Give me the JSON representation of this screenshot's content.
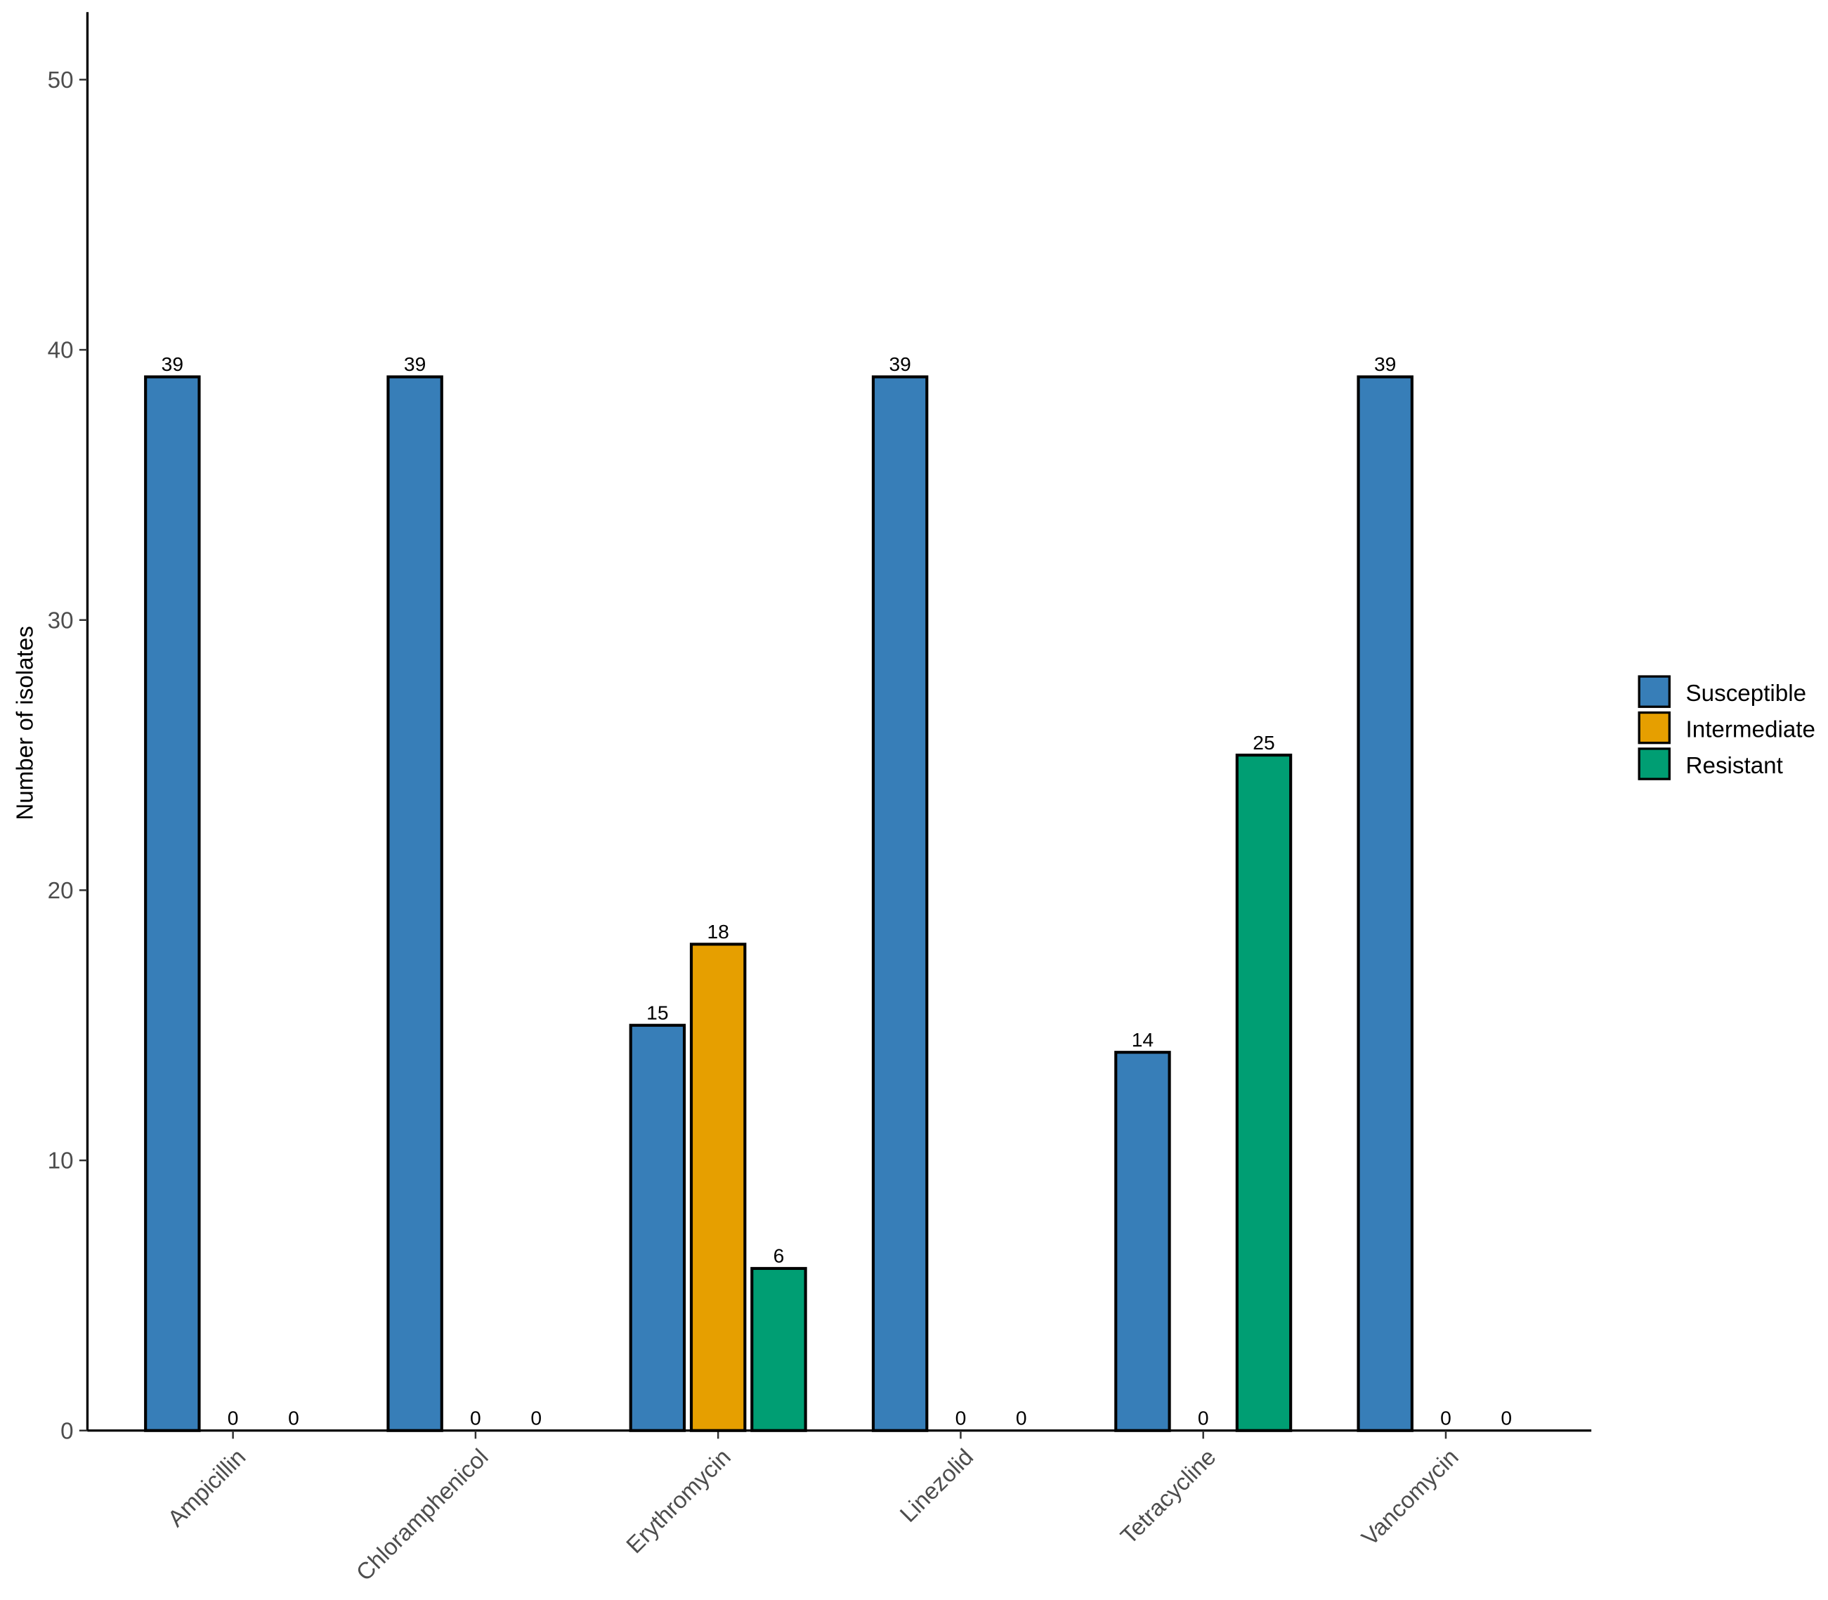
{
  "chart_data": {
    "type": "bar",
    "y_label": "Number of isolates",
    "categories": [
      "Ampicillin",
      "Chloramphenicol",
      "Erythromycin",
      "Linezolid",
      "Tetracycline",
      "Vancomycin"
    ],
    "series": [
      {
        "name": "Susceptible",
        "color": "#377eb8",
        "values": [
          39,
          39,
          15,
          39,
          14,
          39
        ]
      },
      {
        "name": "Intermediate",
        "color": "#e69f00",
        "values": [
          0,
          0,
          18,
          0,
          0,
          0
        ]
      },
      {
        "name": "Resistant",
        "color": "#009e73",
        "values": [
          0,
          0,
          6,
          0,
          25,
          0
        ]
      }
    ],
    "ylim": [
      0,
      52.5
    ],
    "yticks": [
      0,
      10,
      20,
      30,
      40,
      50
    ],
    "grid": false,
    "legend": "right"
  }
}
